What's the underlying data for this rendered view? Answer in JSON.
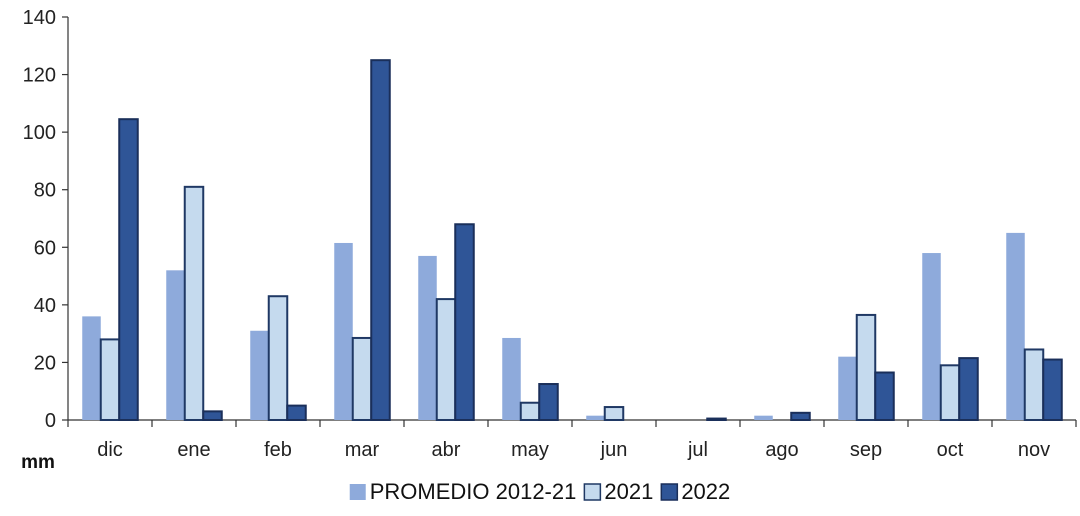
{
  "chart_data": {
    "type": "bar",
    "categories": [
      "dic",
      "ene",
      "feb",
      "mar",
      "abr",
      "may",
      "jun",
      "jul",
      "ago",
      "sep",
      "oct",
      "nov"
    ],
    "series": [
      {
        "name": "PROMEDIO 2012-21",
        "color": "#8eaadb",
        "stroke": "none",
        "values": [
          36,
          52,
          31,
          61.5,
          57,
          28.5,
          1.5,
          0,
          1.5,
          22,
          58,
          65
        ]
      },
      {
        "name": "2021",
        "color": "#c5daee",
        "stroke": "#1f3864",
        "values": [
          28,
          81,
          43,
          28.5,
          42,
          6,
          4.5,
          0,
          0,
          36.5,
          19,
          24.5
        ]
      },
      {
        "name": "2022",
        "color": "#2f5597",
        "stroke": "#1a2f5a",
        "values": [
          104.5,
          3,
          5,
          125,
          68,
          12.5,
          0,
          0.5,
          2.5,
          16.5,
          21.5,
          21
        ]
      }
    ],
    "ylabel": "mm",
    "ylim": [
      0,
      140
    ],
    "yticks": [
      0,
      20,
      40,
      60,
      80,
      100,
      120,
      140
    ],
    "grid": false,
    "legend": "bottom"
  }
}
